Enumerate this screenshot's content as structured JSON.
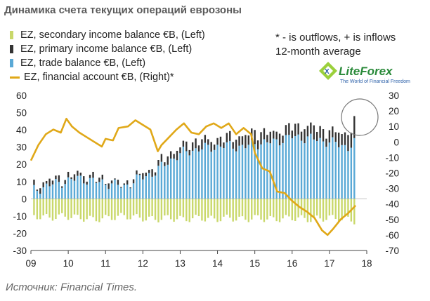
{
  "title": "Динамика счета текущих операций еврозоны",
  "note": {
    "line1": "* - is outflows, + is  inflows",
    "line2": "12-month average"
  },
  "logo": {
    "name": "LiteForex",
    "tagline": "The World of Financial Freedom",
    "accent": "#2a8a3a"
  },
  "source": "Источник: Financial Times.",
  "chart_data": {
    "type": "bar",
    "title": "Динамика счета текущих операций еврозоны",
    "legend": [
      {
        "label": "EZ, secondary income balance €B, (Left)",
        "color": "#c9d86a",
        "kind": "bar"
      },
      {
        "label": "EZ, primary income balance €B, (Left)",
        "color": "#333333",
        "kind": "bar"
      },
      {
        "label": "EZ, trade balance €B, (Left)",
        "color": "#5aa9d6",
        "kind": "bar"
      },
      {
        "label": "EZ, financial account €B, (Right)*",
        "color": "#e0a818",
        "kind": "line"
      }
    ],
    "x_ticks": [
      "09",
      "10",
      "11",
      "12",
      "13",
      "14",
      "15",
      "16",
      "17",
      "18"
    ],
    "y_left": {
      "min": -30,
      "max": 60,
      "ticks": [
        "60",
        "50",
        "40",
        "30",
        "20",
        "10",
        "0",
        "-10",
        "-20",
        "-30"
      ]
    },
    "y_right": {
      "min": -70,
      "max": 30,
      "ticks": [
        "30",
        "20",
        "10",
        "0",
        "-10",
        "-20",
        "-30",
        "-40",
        "-50",
        "-60",
        "-70"
      ]
    },
    "x_range": [
      2009.0,
      2018.0
    ],
    "annotation": "circle highlighting latest values (2017-2018)",
    "trade_balance": [
      [
        2009.1,
        5
      ],
      [
        2009.5,
        8
      ],
      [
        2009.9,
        10
      ],
      [
        2010.3,
        12
      ],
      [
        2010.7,
        10
      ],
      [
        2011.1,
        9
      ],
      [
        2011.5,
        7
      ],
      [
        2011.9,
        12
      ],
      [
        2012.3,
        15
      ],
      [
        2012.7,
        22
      ],
      [
        2013.1,
        27
      ],
      [
        2013.5,
        29
      ],
      [
        2013.9,
        30
      ],
      [
        2014.3,
        31
      ],
      [
        2014.7,
        30
      ],
      [
        2015.0,
        32
      ],
      [
        2015.5,
        33
      ],
      [
        2016.0,
        36
      ],
      [
        2016.5,
        35
      ],
      [
        2017.0,
        33
      ],
      [
        2017.5,
        30
      ],
      [
        2017.7,
        33
      ]
    ],
    "primary_income": [
      [
        2009.1,
        2
      ],
      [
        2009.5,
        3
      ],
      [
        2009.9,
        2
      ],
      [
        2010.3,
        3
      ],
      [
        2010.7,
        2
      ],
      [
        2011.1,
        2
      ],
      [
        2011.5,
        1
      ],
      [
        2011.9,
        2
      ],
      [
        2012.3,
        3
      ],
      [
        2012.7,
        4
      ],
      [
        2013.1,
        4
      ],
      [
        2013.5,
        5
      ],
      [
        2013.9,
        4
      ],
      [
        2014.3,
        5
      ],
      [
        2014.7,
        6
      ],
      [
        2015.0,
        7
      ],
      [
        2015.5,
        5
      ],
      [
        2016.0,
        6
      ],
      [
        2016.5,
        7
      ],
      [
        2017.0,
        6
      ],
      [
        2017.5,
        8
      ],
      [
        2017.7,
        13
      ]
    ],
    "secondary_income": [
      [
        2009.1,
        -10
      ],
      [
        2009.5,
        -11
      ],
      [
        2009.9,
        -10
      ],
      [
        2010.3,
        -11
      ],
      [
        2010.7,
        -12
      ],
      [
        2011.1,
        -11
      ],
      [
        2011.5,
        -10
      ],
      [
        2011.9,
        -11
      ],
      [
        2012.3,
        -12
      ],
      [
        2012.7,
        -11
      ],
      [
        2013.1,
        -12
      ],
      [
        2013.5,
        -11
      ],
      [
        2013.9,
        -12
      ],
      [
        2014.3,
        -11
      ],
      [
        2014.7,
        -12
      ],
      [
        2015.0,
        -11
      ],
      [
        2015.5,
        -12
      ],
      [
        2016.0,
        -11
      ],
      [
        2016.5,
        -12
      ],
      [
        2017.0,
        -11
      ],
      [
        2017.5,
        -12
      ],
      [
        2017.7,
        -13
      ]
    ],
    "financial_account": [
      [
        2009.0,
        -12
      ],
      [
        2009.2,
        -2
      ],
      [
        2009.4,
        5
      ],
      [
        2009.6,
        8
      ],
      [
        2009.8,
        6
      ],
      [
        2009.95,
        15
      ],
      [
        2010.1,
        10
      ],
      [
        2010.3,
        6
      ],
      [
        2010.5,
        3
      ],
      [
        2010.7,
        0
      ],
      [
        2010.9,
        -3
      ],
      [
        2011.0,
        2
      ],
      [
        2011.2,
        1
      ],
      [
        2011.35,
        9
      ],
      [
        2011.6,
        10
      ],
      [
        2011.8,
        14
      ],
      [
        2012.0,
        11
      ],
      [
        2012.2,
        8
      ],
      [
        2012.4,
        -6
      ],
      [
        2012.5,
        -2
      ],
      [
        2012.7,
        3
      ],
      [
        2012.9,
        8
      ],
      [
        2013.1,
        12
      ],
      [
        2013.3,
        6
      ],
      [
        2013.5,
        5
      ],
      [
        2013.7,
        10
      ],
      [
        2013.9,
        12
      ],
      [
        2014.1,
        9
      ],
      [
        2014.3,
        12
      ],
      [
        2014.5,
        5
      ],
      [
        2014.7,
        9
      ],
      [
        2014.9,
        5
      ],
      [
        2015.0,
        -7
      ],
      [
        2015.2,
        -17
      ],
      [
        2015.4,
        -19
      ],
      [
        2015.6,
        -32
      ],
      [
        2015.8,
        -33
      ],
      [
        2016.0,
        -38
      ],
      [
        2016.2,
        -42
      ],
      [
        2016.4,
        -45
      ],
      [
        2016.6,
        -49
      ],
      [
        2016.8,
        -57
      ],
      [
        2016.95,
        -60
      ],
      [
        2017.1,
        -56
      ],
      [
        2017.3,
        -50
      ],
      [
        2017.5,
        -46
      ],
      [
        2017.7,
        -41
      ]
    ]
  }
}
